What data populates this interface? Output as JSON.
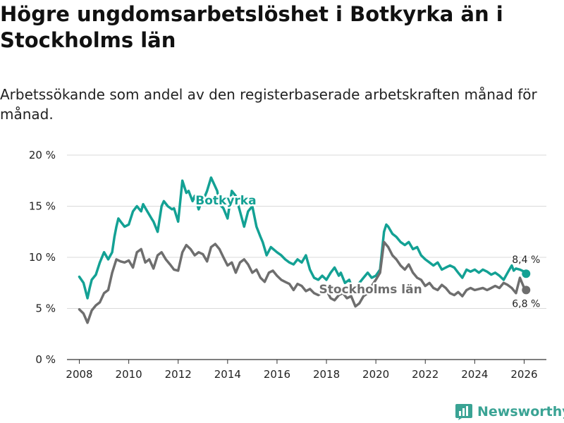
{
  "header": {
    "title": "Högre ungdomsarbetslöshet i Botkyrka än i Stockholms län",
    "subtitle": "Arbetssökande som andel av den registerbaserade arbetskraften månad för månad."
  },
  "brand": {
    "name": "Newsworthy",
    "icon": "bar-chart-logo-icon",
    "color": "#3aa394"
  },
  "chart_data": {
    "type": "line",
    "title": "Högre ungdomsarbetslöshet i Botkyrka än i Stockholms län",
    "subtitle": "Arbetssökande som andel av den registerbaserade arbetskraften månad för månad.",
    "xlabel": "",
    "ylabel": "",
    "xlim": [
      2007.5,
      2026.9
    ],
    "ylim": [
      0,
      20
    ],
    "x_ticks": [
      2008,
      2010,
      2012,
      2014,
      2016,
      2018,
      2020,
      2022,
      2024,
      2026
    ],
    "y_ticks": [
      0,
      5,
      10,
      15,
      20
    ],
    "y_tick_labels": [
      "0 %",
      "5 %",
      "10 %",
      "15 %",
      "20 %"
    ],
    "grid": true,
    "series": [
      {
        "name": "Botkyrka",
        "color": "#13a194",
        "end_label": "8,4 %",
        "x": [
          2008.0,
          2008.17,
          2008.33,
          2008.42,
          2008.5,
          2008.67,
          2008.83,
          2009.0,
          2009.17,
          2009.33,
          2009.42,
          2009.5,
          2009.58,
          2009.67,
          2009.83,
          2010.0,
          2010.17,
          2010.33,
          2010.5,
          2010.58,
          2010.75,
          2010.92,
          2011.0,
          2011.17,
          2011.33,
          2011.42,
          2011.58,
          2011.75,
          2011.83,
          2012.0,
          2012.17,
          2012.33,
          2012.42,
          2012.58,
          2012.67,
          2012.83,
          2012.92,
          2013.0,
          2013.17,
          2013.33,
          2013.58,
          2013.67,
          2013.83,
          2014.0,
          2014.17,
          2014.33,
          2014.5,
          2014.67,
          2014.83,
          2015.0,
          2015.17,
          2015.33,
          2015.42,
          2015.58,
          2015.75,
          2016.0,
          2016.17,
          2016.33,
          2016.5,
          2016.67,
          2016.83,
          2017.0,
          2017.17,
          2017.33,
          2017.5,
          2017.67,
          2017.83,
          2018.0,
          2018.17,
          2018.33,
          2018.5,
          2018.58,
          2018.75,
          2018.92,
          2019.0,
          2019.17,
          2019.33,
          2019.5,
          2019.67,
          2019.83,
          2020.0,
          2020.17,
          2020.33,
          2020.42,
          2020.5,
          2020.67,
          2020.83,
          2021.0,
          2021.17,
          2021.33,
          2021.5,
          2021.67,
          2021.83,
          2022.0,
          2022.17,
          2022.33,
          2022.5,
          2022.67,
          2022.83,
          2023.0,
          2023.17,
          2023.33,
          2023.5,
          2023.67,
          2023.83,
          2024.0,
          2024.17,
          2024.33,
          2024.5,
          2024.67,
          2024.83,
          2025.0,
          2025.17,
          2025.33,
          2025.5,
          2025.58,
          2025.67,
          2025.83,
          2026.0,
          2026.08
        ],
        "values": [
          8.1,
          7.5,
          6.0,
          7.0,
          7.8,
          8.3,
          9.5,
          10.5,
          9.8,
          10.5,
          12.0,
          13.0,
          13.8,
          13.5,
          13.0,
          13.2,
          14.5,
          15.0,
          14.5,
          15.2,
          14.5,
          13.8,
          13.5,
          12.5,
          15.0,
          15.5,
          15.0,
          14.7,
          14.8,
          13.5,
          17.5,
          16.3,
          16.5,
          15.5,
          16.0,
          14.7,
          15.3,
          15.5,
          16.5,
          17.8,
          16.5,
          15.2,
          14.8,
          13.8,
          16.5,
          16.0,
          14.5,
          13.0,
          14.5,
          15.0,
          13.0,
          12.0,
          11.5,
          10.2,
          11.0,
          10.5,
          10.2,
          9.8,
          9.5,
          9.3,
          9.8,
          9.5,
          10.2,
          8.8,
          8.0,
          7.8,
          8.2,
          7.8,
          8.5,
          9.0,
          8.2,
          8.5,
          7.5,
          7.8,
          7.3,
          7.0,
          7.5,
          8.0,
          8.5,
          8.0,
          8.2,
          8.8,
          12.5,
          13.2,
          13.0,
          12.3,
          12.0,
          11.5,
          11.2,
          11.5,
          10.8,
          11.0,
          10.2,
          9.8,
          9.5,
          9.2,
          9.5,
          8.8,
          9.0,
          9.2,
          9.0,
          8.5,
          8.0,
          8.8,
          8.6,
          8.8,
          8.5,
          8.8,
          8.6,
          8.3,
          8.5,
          8.2,
          7.8,
          8.5,
          9.2,
          8.7,
          8.9,
          8.8,
          8.6,
          8.4
        ]
      },
      {
        "name": "Stockholms län",
        "color": "#6e6e6e",
        "end_label": "6,8 %",
        "x": [
          2008.0,
          2008.17,
          2008.33,
          2008.5,
          2008.67,
          2008.83,
          2009.0,
          2009.17,
          2009.33,
          2009.5,
          2009.67,
          2009.83,
          2010.0,
          2010.17,
          2010.33,
          2010.5,
          2010.67,
          2010.83,
          2011.0,
          2011.17,
          2011.33,
          2011.5,
          2011.67,
          2011.83,
          2012.0,
          2012.17,
          2012.33,
          2012.5,
          2012.67,
          2012.83,
          2013.0,
          2013.17,
          2013.33,
          2013.5,
          2013.67,
          2013.83,
          2014.0,
          2014.17,
          2014.33,
          2014.5,
          2014.67,
          2014.83,
          2015.0,
          2015.17,
          2015.33,
          2015.5,
          2015.67,
          2015.83,
          2016.0,
          2016.17,
          2016.33,
          2016.5,
          2016.67,
          2016.83,
          2017.0,
          2017.17,
          2017.33,
          2017.5,
          2017.67,
          2017.83,
          2018.0,
          2018.17,
          2018.33,
          2018.5,
          2018.67,
          2018.83,
          2019.0,
          2019.17,
          2019.33,
          2019.5,
          2019.67,
          2019.83,
          2020.0,
          2020.17,
          2020.33,
          2020.5,
          2020.67,
          2020.83,
          2021.0,
          2021.17,
          2021.33,
          2021.5,
          2021.67,
          2021.83,
          2022.0,
          2022.17,
          2022.33,
          2022.5,
          2022.67,
          2022.83,
          2023.0,
          2023.17,
          2023.33,
          2023.5,
          2023.67,
          2023.83,
          2024.0,
          2024.17,
          2024.33,
          2024.5,
          2024.67,
          2024.83,
          2025.0,
          2025.17,
          2025.33,
          2025.5,
          2025.67,
          2025.83,
          2026.0,
          2026.08
        ],
        "values": [
          4.9,
          4.5,
          3.6,
          4.8,
          5.3,
          5.6,
          6.5,
          6.8,
          8.5,
          9.8,
          9.6,
          9.5,
          9.7,
          9.0,
          10.5,
          10.8,
          9.5,
          9.8,
          8.9,
          10.2,
          10.5,
          9.8,
          9.3,
          8.8,
          8.7,
          10.5,
          11.2,
          10.8,
          10.2,
          10.5,
          10.3,
          9.6,
          11.0,
          11.3,
          10.8,
          10.0,
          9.2,
          9.5,
          8.5,
          9.5,
          9.8,
          9.3,
          8.5,
          8.8,
          8.0,
          7.6,
          8.5,
          8.7,
          8.2,
          7.8,
          7.6,
          7.4,
          6.8,
          7.4,
          7.2,
          6.7,
          6.9,
          6.5,
          6.3,
          6.6,
          6.8,
          6.0,
          5.8,
          6.3,
          6.5,
          6.0,
          6.2,
          5.2,
          5.5,
          6.2,
          6.5,
          7.2,
          7.8,
          8.5,
          11.5,
          11.0,
          10.2,
          9.8,
          9.2,
          8.8,
          9.3,
          8.5,
          8.0,
          7.8,
          7.2,
          7.5,
          7.0,
          6.8,
          7.3,
          7.0,
          6.5,
          6.3,
          6.6,
          6.2,
          6.8,
          7.0,
          6.8,
          6.9,
          7.0,
          6.8,
          7.0,
          7.2,
          7.0,
          7.5,
          7.3,
          7.0,
          6.5,
          8.0,
          7.0,
          6.8
        ]
      }
    ]
  }
}
